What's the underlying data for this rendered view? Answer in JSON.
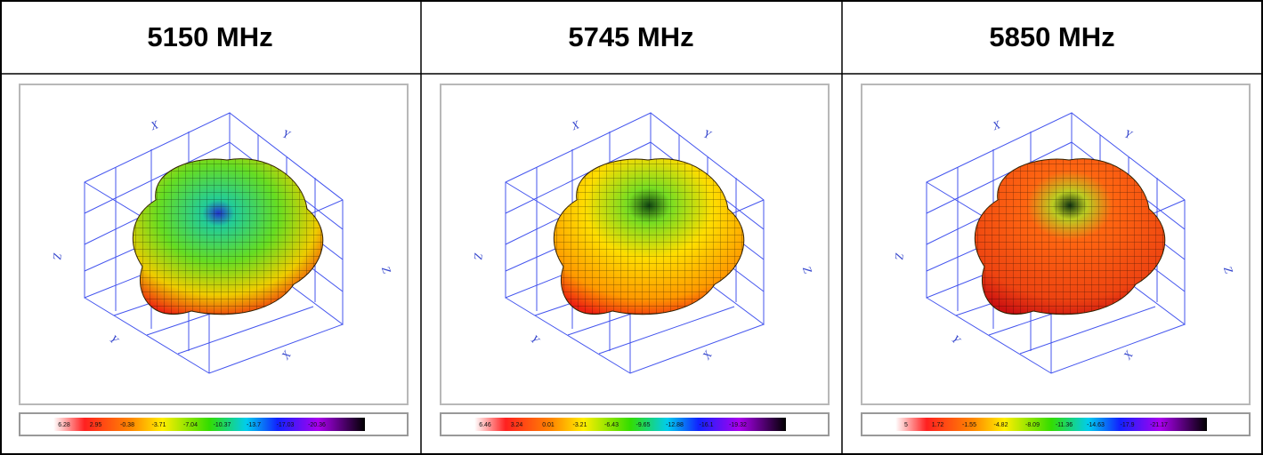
{
  "panels": [
    {
      "title": "5150 MHz",
      "axis_labels": [
        "X",
        "Y",
        "Z",
        "X",
        "Y",
        "Z"
      ],
      "scale_labels": [
        "6.28",
        "2.95",
        "-0.38",
        "-3.71",
        "-7.04",
        "-10.37",
        "-13.7",
        "-17.03",
        "-20.36"
      ]
    },
    {
      "title": "5745 MHz",
      "axis_labels": [
        "X",
        "Y",
        "Z",
        "X",
        "Y",
        "Z"
      ],
      "scale_labels": [
        "6.46",
        "3.24",
        "0.01",
        "-3.21",
        "-6.43",
        "-9.65",
        "-12.88",
        "-16.1",
        "-19.32"
      ]
    },
    {
      "title": "5850 MHz",
      "axis_labels": [
        "X",
        "Y",
        "Z",
        "X",
        "Y",
        "Z"
      ],
      "scale_labels": [
        "5",
        "1.72",
        "-1.55",
        "-4.82",
        "-8.09",
        "-11.36",
        "-14.63",
        "-17.9",
        "-21.17"
      ]
    }
  ]
}
